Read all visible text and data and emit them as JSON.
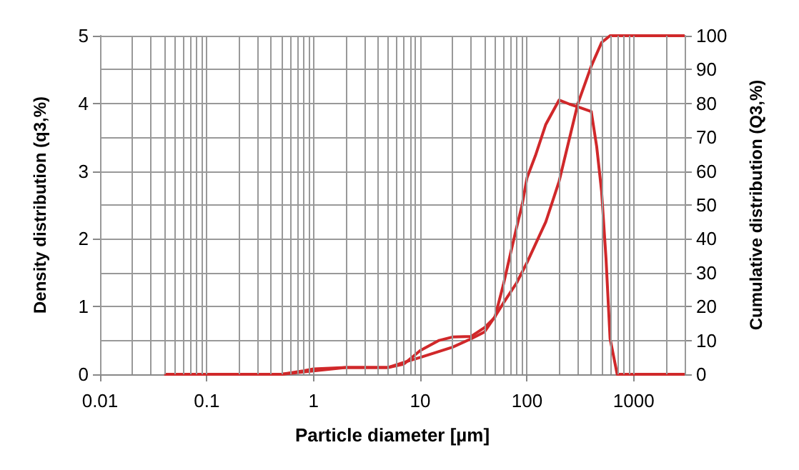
{
  "chart_data": {
    "type": "line",
    "xlabel": "Particle diameter [µm]",
    "ylabel": "Density distribution (q3,%)",
    "y2label": "Cumulative distribution (Q3,%)",
    "log": "x",
    "grid": true,
    "marker": "none",
    "line_style": "solid",
    "xlim": [
      0.01,
      3000
    ],
    "xticks": [
      0.01,
      0.1,
      1,
      10,
      100,
      1000
    ],
    "ylim": [
      0,
      5
    ],
    "yticks": [
      0,
      1,
      2,
      3,
      4,
      5
    ],
    "y2lim": [
      0,
      100
    ],
    "y2ticks": [
      0,
      10,
      20,
      30,
      40,
      50,
      60,
      70,
      80,
      90,
      100
    ],
    "series": [
      {
        "color": "#d0282a",
        "x": [
          0.04,
          0.1,
          0.3,
          0.5,
          0.8,
          1,
          2,
          3,
          5,
          7,
          10,
          15,
          20,
          30,
          40,
          50,
          60,
          70,
          80,
          90,
          100,
          120,
          150,
          200,
          250,
          300,
          400,
          450,
          500,
          550,
          600,
          700,
          1000,
          3000
        ],
        "values": [
          0,
          0,
          0,
          0,
          0.05,
          0.08,
          0.1,
          0.1,
          0.1,
          0.15,
          0.35,
          0.5,
          0.55,
          0.56,
          0.69,
          0.84,
          1.32,
          1.78,
          2.17,
          2.5,
          2.9,
          3.23,
          3.69,
          4.05,
          3.99,
          3.95,
          3.88,
          3.36,
          2.7,
          1.71,
          0.53,
          0,
          0,
          0
        ]
      },
      {
        "color": "#d0282a",
        "axis": "y2",
        "x": [
          0.04,
          0.1,
          0.3,
          0.5,
          1,
          2,
          5,
          7,
          10,
          20,
          30,
          40,
          50,
          60,
          80,
          100,
          150,
          200,
          300,
          400,
          500,
          600,
          1000,
          3000
        ],
        "values": [
          0,
          0,
          0,
          0,
          1,
          2,
          2,
          3.5,
          5,
          8,
          10.5,
          12.5,
          17,
          21,
          27,
          33,
          45,
          57,
          80,
          91,
          98,
          100,
          100,
          100
        ]
      }
    ]
  }
}
